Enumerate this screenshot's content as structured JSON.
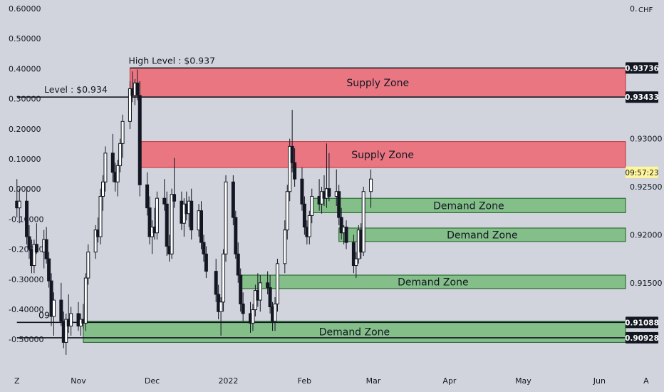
{
  "chart_data": {
    "type": "candlestick",
    "currency": "CHF",
    "current_time": "09:57:23",
    "left_axis_ticks": [
      "0.60000",
      "0.50000",
      "0.40000",
      "0.30000",
      "0.20000",
      "0.10000",
      "0.00000",
      "-0.10000",
      "-0.20000",
      "-0.30000",
      "-0.40000",
      "-0.50000"
    ],
    "right_axis_ticks": [
      {
        "label": "0.93000",
        "value": 0.93
      },
      {
        "label": "0.92500",
        "value": 0.925
      },
      {
        "label": "0.92000",
        "value": 0.92
      },
      {
        "label": "0.91500",
        "value": 0.915
      }
    ],
    "right_axis_top_label": "0.",
    "price_badges": [
      {
        "label": "0.93736",
        "value": 0.93736
      },
      {
        "label": "0.93433",
        "value": 0.93433
      },
      {
        "label": "0.91088",
        "value": 0.91088
      },
      {
        "label": "0.90928",
        "value": 0.90928
      }
    ],
    "x_labels": [
      {
        "label": "Z",
        "date": "2021-10-07"
      },
      {
        "label": "Nov",
        "date": "2021-11-01"
      },
      {
        "label": "Dec",
        "date": "2021-12-01"
      },
      {
        "label": "2022",
        "date": "2022-01-01"
      },
      {
        "label": "Feb",
        "date": "2022-02-01"
      },
      {
        "label": "Mar",
        "date": "2022-03-01"
      },
      {
        "label": "Apr",
        "date": "2022-04-01"
      },
      {
        "label": "May",
        "date": "2022-05-01"
      },
      {
        "label": "Jun",
        "date": "2022-06-01"
      },
      {
        "label": "A",
        "date": "2022-06-20"
      }
    ],
    "levels": [
      {
        "label": "High Level : $0.937",
        "value": 0.93736,
        "start": "2021-11-22",
        "end": "2022-06-20"
      },
      {
        "label": "Level : $0.934",
        "value": 0.93433,
        "start": "2021-10-07",
        "end": "2022-06-20"
      },
      {
        "label": "09",
        "value": 0.91088,
        "start": "2021-10-07",
        "end": "2022-06-20"
      },
      {
        "label": "",
        "value": 0.90928,
        "start": "2021-10-07",
        "end": "2022-06-20"
      }
    ],
    "zones": [
      {
        "label": "Supply Zone",
        "kind": "supply",
        "from": "2021-11-22",
        "to": "2022-06-20",
        "low": 0.93433,
        "high": 0.93736
      },
      {
        "label": "Supply Zone",
        "kind": "supply",
        "from": "2021-11-26",
        "to": "2022-06-20",
        "low": 0.927,
        "high": 0.9297
      },
      {
        "label": "Demand Zone",
        "kind": "demand",
        "from": "2022-02-04",
        "to": "2022-06-20",
        "low": 0.9223,
        "high": 0.9238
      },
      {
        "label": "Demand Zone",
        "kind": "demand",
        "from": "2022-02-15",
        "to": "2022-06-16",
        "low": 0.9193,
        "high": 0.9207
      },
      {
        "label": "Demand Zone",
        "kind": "demand",
        "from": "2022-01-06",
        "to": "2022-06-14",
        "low": 0.9144,
        "high": 0.9158
      },
      {
        "label": "Demand Zone",
        "kind": "demand",
        "from": "2021-11-03",
        "to": "2022-06-14",
        "low": 0.9088,
        "high": 0.911
      }
    ],
    "candles": [
      {
        "d": "2021-10-07",
        "o": 0.9235,
        "h": 0.9258,
        "l": 0.9218,
        "c": 0.9228
      },
      {
        "d": "2021-10-08",
        "o": 0.9228,
        "h": 0.9248,
        "l": 0.9212,
        "c": 0.9235
      },
      {
        "d": "2021-10-11",
        "o": 0.9235,
        "h": 0.925,
        "l": 0.919,
        "c": 0.9198
      },
      {
        "d": "2021-10-12",
        "o": 0.9198,
        "h": 0.921,
        "l": 0.9175,
        "c": 0.9185
      },
      {
        "d": "2021-10-13",
        "o": 0.9185,
        "h": 0.9195,
        "l": 0.916,
        "c": 0.9168
      },
      {
        "d": "2021-10-14",
        "o": 0.9168,
        "h": 0.9195,
        "l": 0.916,
        "c": 0.919
      },
      {
        "d": "2021-10-15",
        "o": 0.919,
        "h": 0.9212,
        "l": 0.918,
        "c": 0.9182
      },
      {
        "d": "2021-10-18",
        "o": 0.9182,
        "h": 0.9205,
        "l": 0.9165,
        "c": 0.9195
      },
      {
        "d": "2021-10-19",
        "o": 0.9195,
        "h": 0.9208,
        "l": 0.917,
        "c": 0.9175
      },
      {
        "d": "2021-10-20",
        "o": 0.9175,
        "h": 0.9182,
        "l": 0.9145,
        "c": 0.9152
      },
      {
        "d": "2021-10-21",
        "o": 0.9152,
        "h": 0.916,
        "l": 0.9105,
        "c": 0.9115
      },
      {
        "d": "2021-10-22",
        "o": 0.9115,
        "h": 0.914,
        "l": 0.9095,
        "c": 0.9132
      },
      {
        "d": "2021-10-25",
        "o": 0.9132,
        "h": 0.915,
        "l": 0.9105,
        "c": 0.911
      },
      {
        "d": "2021-10-26",
        "o": 0.911,
        "h": 0.912,
        "l": 0.9082,
        "c": 0.9088
      },
      {
        "d": "2021-10-27",
        "o": 0.9088,
        "h": 0.9118,
        "l": 0.9075,
        "c": 0.9112
      },
      {
        "d": "2021-10-28",
        "o": 0.9112,
        "h": 0.9138,
        "l": 0.9098,
        "c": 0.9105
      },
      {
        "d": "2021-10-29",
        "o": 0.9105,
        "h": 0.9125,
        "l": 0.9095,
        "c": 0.9118
      },
      {
        "d": "2021-11-01",
        "o": 0.9118,
        "h": 0.913,
        "l": 0.91,
        "c": 0.9105
      },
      {
        "d": "2021-11-02",
        "o": 0.9105,
        "h": 0.9118,
        "l": 0.9095,
        "c": 0.9112
      },
      {
        "d": "2021-11-03",
        "o": 0.9112,
        "h": 0.9128,
        "l": 0.9102,
        "c": 0.9108
      },
      {
        "d": "2021-11-04",
        "o": 0.9108,
        "h": 0.916,
        "l": 0.91,
        "c": 0.9155
      },
      {
        "d": "2021-11-05",
        "o": 0.9155,
        "h": 0.919,
        "l": 0.9148,
        "c": 0.9182
      },
      {
        "d": "2021-11-08",
        "o": 0.9182,
        "h": 0.921,
        "l": 0.9175,
        "c": 0.9205
      },
      {
        "d": "2021-11-09",
        "o": 0.9205,
        "h": 0.9218,
        "l": 0.9192,
        "c": 0.9198
      },
      {
        "d": "2021-11-10",
        "o": 0.9198,
        "h": 0.9248,
        "l": 0.919,
        "c": 0.924
      },
      {
        "d": "2021-11-11",
        "o": 0.924,
        "h": 0.9262,
        "l": 0.9225,
        "c": 0.9255
      },
      {
        "d": "2021-11-12",
        "o": 0.9255,
        "h": 0.9292,
        "l": 0.9245,
        "c": 0.9285
      },
      {
        "d": "2021-11-15",
        "o": 0.9285,
        "h": 0.9305,
        "l": 0.9255,
        "c": 0.9265
      },
      {
        "d": "2021-11-16",
        "o": 0.9265,
        "h": 0.9275,
        "l": 0.9245,
        "c": 0.9255
      },
      {
        "d": "2021-11-17",
        "o": 0.9255,
        "h": 0.9278,
        "l": 0.924,
        "c": 0.9272
      },
      {
        "d": "2021-11-18",
        "o": 0.9272,
        "h": 0.93,
        "l": 0.9265,
        "c": 0.9295
      },
      {
        "d": "2021-11-19",
        "o": 0.9295,
        "h": 0.9325,
        "l": 0.928,
        "c": 0.9318
      },
      {
        "d": "2021-11-22",
        "o": 0.9318,
        "h": 0.936,
        "l": 0.931,
        "c": 0.9352
      },
      {
        "d": "2021-11-23",
        "o": 0.9352,
        "h": 0.937,
        "l": 0.9338,
        "c": 0.9345
      },
      {
        "d": "2021-11-24",
        "o": 0.9345,
        "h": 0.9362,
        "l": 0.9335,
        "c": 0.9358
      },
      {
        "d": "2021-11-25",
        "o": 0.9358,
        "h": 0.9372,
        "l": 0.934,
        "c": 0.9345
      },
      {
        "d": "2021-11-26",
        "o": 0.9345,
        "h": 0.936,
        "l": 0.924,
        "c": 0.9252
      },
      {
        "d": "2021-11-29",
        "o": 0.9252,
        "h": 0.9265,
        "l": 0.922,
        "c": 0.9228
      },
      {
        "d": "2021-11-30",
        "o": 0.9228,
        "h": 0.924,
        "l": 0.919,
        "c": 0.9198
      },
      {
        "d": "2021-12-01",
        "o": 0.9198,
        "h": 0.9215,
        "l": 0.918,
        "c": 0.9208
      },
      {
        "d": "2021-12-02",
        "o": 0.9208,
        "h": 0.9228,
        "l": 0.9195,
        "c": 0.9202
      },
      {
        "d": "2021-12-03",
        "o": 0.9202,
        "h": 0.9245,
        "l": 0.9195,
        "c": 0.9238
      },
      {
        "d": "2021-12-06",
        "o": 0.9238,
        "h": 0.9258,
        "l": 0.9225,
        "c": 0.9232
      },
      {
        "d": "2021-12-07",
        "o": 0.9232,
        "h": 0.9245,
        "l": 0.9178,
        "c": 0.9188
      },
      {
        "d": "2021-12-08",
        "o": 0.9188,
        "h": 0.92,
        "l": 0.9172,
        "c": 0.918
      },
      {
        "d": "2021-12-09",
        "o": 0.918,
        "h": 0.9248,
        "l": 0.9175,
        "c": 0.9242
      },
      {
        "d": "2021-12-10",
        "o": 0.9242,
        "h": 0.928,
        "l": 0.9228,
        "c": 0.9235
      },
      {
        "d": "2021-12-13",
        "o": 0.9235,
        "h": 0.9245,
        "l": 0.9205,
        "c": 0.9212
      },
      {
        "d": "2021-12-14",
        "o": 0.9212,
        "h": 0.9238,
        "l": 0.9198,
        "c": 0.9232
      },
      {
        "d": "2021-12-15",
        "o": 0.9232,
        "h": 0.9245,
        "l": 0.9215,
        "c": 0.9222
      },
      {
        "d": "2021-12-16",
        "o": 0.9222,
        "h": 0.924,
        "l": 0.9208,
        "c": 0.9235
      },
      {
        "d": "2021-12-17",
        "o": 0.9235,
        "h": 0.9248,
        "l": 0.9195,
        "c": 0.9205
      },
      {
        "d": "2021-12-20",
        "o": 0.9205,
        "h": 0.9232,
        "l": 0.9198,
        "c": 0.9225
      },
      {
        "d": "2021-12-21",
        "o": 0.9225,
        "h": 0.9235,
        "l": 0.9185,
        "c": 0.9192
      },
      {
        "d": "2021-12-22",
        "o": 0.9192,
        "h": 0.92,
        "l": 0.9172,
        "c": 0.918
      },
      {
        "d": "2021-12-23",
        "o": 0.918,
        "h": 0.9188,
        "l": 0.9155,
        "c": 0.9162
      },
      {
        "d": "2021-12-27",
        "o": 0.9162,
        "h": 0.9175,
        "l": 0.913,
        "c": 0.9138
      },
      {
        "d": "2021-12-28",
        "o": 0.9138,
        "h": 0.9148,
        "l": 0.9112,
        "c": 0.912
      },
      {
        "d": "2021-12-29",
        "o": 0.912,
        "h": 0.9135,
        "l": 0.9095,
        "c": 0.913
      },
      {
        "d": "2021-12-30",
        "o": 0.913,
        "h": 0.9185,
        "l": 0.912,
        "c": 0.918
      },
      {
        "d": "2021-12-31",
        "o": 0.918,
        "h": 0.9262,
        "l": 0.9172,
        "c": 0.9255
      },
      {
        "d": "2022-01-03",
        "o": 0.9255,
        "h": 0.9262,
        "l": 0.921,
        "c": 0.9218
      },
      {
        "d": "2022-01-04",
        "o": 0.9218,
        "h": 0.9225,
        "l": 0.9175,
        "c": 0.918
      },
      {
        "d": "2022-01-05",
        "o": 0.918,
        "h": 0.9192,
        "l": 0.915,
        "c": 0.9158
      },
      {
        "d": "2022-01-06",
        "o": 0.9158,
        "h": 0.9165,
        "l": 0.912,
        "c": 0.9128
      },
      {
        "d": "2022-01-07",
        "o": 0.9128,
        "h": 0.914,
        "l": 0.911,
        "c": 0.9118
      },
      {
        "d": "2022-01-10",
        "o": 0.9118,
        "h": 0.913,
        "l": 0.9098,
        "c": 0.9108
      },
      {
        "d": "2022-01-11",
        "o": 0.9108,
        "h": 0.9128,
        "l": 0.91,
        "c": 0.9122
      },
      {
        "d": "2022-01-12",
        "o": 0.9122,
        "h": 0.9148,
        "l": 0.9115,
        "c": 0.9142
      },
      {
        "d": "2022-01-13",
        "o": 0.9142,
        "h": 0.916,
        "l": 0.9125,
        "c": 0.9132
      },
      {
        "d": "2022-01-14",
        "o": 0.9132,
        "h": 0.9158,
        "l": 0.912,
        "c": 0.915
      },
      {
        "d": "2022-01-17",
        "o": 0.915,
        "h": 0.9162,
        "l": 0.9138,
        "c": 0.9145
      },
      {
        "d": "2022-01-18",
        "o": 0.9145,
        "h": 0.9158,
        "l": 0.9118,
        "c": 0.9125
      },
      {
        "d": "2022-01-19",
        "o": 0.9125,
        "h": 0.913,
        "l": 0.91,
        "c": 0.911
      },
      {
        "d": "2022-01-20",
        "o": 0.911,
        "h": 0.9135,
        "l": 0.91,
        "c": 0.9128
      },
      {
        "d": "2022-01-21",
        "o": 0.9128,
        "h": 0.9175,
        "l": 0.912,
        "c": 0.917
      },
      {
        "d": "2022-01-24",
        "o": 0.917,
        "h": 0.9215,
        "l": 0.916,
        "c": 0.9205
      },
      {
        "d": "2022-01-25",
        "o": 0.9205,
        "h": 0.9252,
        "l": 0.9195,
        "c": 0.9245
      },
      {
        "d": "2022-01-26",
        "o": 0.9245,
        "h": 0.93,
        "l": 0.9235,
        "c": 0.9292
      },
      {
        "d": "2022-01-27",
        "o": 0.9292,
        "h": 0.933,
        "l": 0.9265,
        "c": 0.9275
      },
      {
        "d": "2022-01-28",
        "o": 0.9275,
        "h": 0.929,
        "l": 0.925,
        "c": 0.9258
      },
      {
        "d": "2022-01-31",
        "o": 0.9258,
        "h": 0.927,
        "l": 0.9225,
        "c": 0.9232
      },
      {
        "d": "2022-02-01",
        "o": 0.9232,
        "h": 0.924,
        "l": 0.92,
        "c": 0.9208
      },
      {
        "d": "2022-02-02",
        "o": 0.9208,
        "h": 0.9215,
        "l": 0.919,
        "c": 0.9198
      },
      {
        "d": "2022-02-03",
        "o": 0.9198,
        "h": 0.9225,
        "l": 0.919,
        "c": 0.922
      },
      {
        "d": "2022-02-04",
        "o": 0.922,
        "h": 0.9248,
        "l": 0.9212,
        "c": 0.924
      },
      {
        "d": "2022-02-07",
        "o": 0.924,
        "h": 0.9258,
        "l": 0.9225,
        "c": 0.9232
      },
      {
        "d": "2022-02-08",
        "o": 0.9232,
        "h": 0.925,
        "l": 0.9222,
        "c": 0.9245
      },
      {
        "d": "2022-02-09",
        "o": 0.9245,
        "h": 0.9262,
        "l": 0.923,
        "c": 0.9238
      },
      {
        "d": "2022-02-10",
        "o": 0.9238,
        "h": 0.9295,
        "l": 0.9228,
        "c": 0.9248
      },
      {
        "d": "2022-02-11",
        "o": 0.9248,
        "h": 0.9285,
        "l": 0.9235,
        "c": 0.924
      },
      {
        "d": "2022-02-14",
        "o": 0.924,
        "h": 0.9268,
        "l": 0.923,
        "c": 0.9245
      },
      {
        "d": "2022-02-15",
        "o": 0.9245,
        "h": 0.9252,
        "l": 0.921,
        "c": 0.9218
      },
      {
        "d": "2022-02-16",
        "o": 0.9218,
        "h": 0.9228,
        "l": 0.9195,
        "c": 0.9202
      },
      {
        "d": "2022-02-17",
        "o": 0.9202,
        "h": 0.921,
        "l": 0.919,
        "c": 0.9208
      },
      {
        "d": "2022-02-18",
        "o": 0.9208,
        "h": 0.9215,
        "l": 0.9185,
        "c": 0.9192
      },
      {
        "d": "2022-02-21",
        "o": 0.9192,
        "h": 0.92,
        "l": 0.916,
        "c": 0.9168
      },
      {
        "d": "2022-02-22",
        "o": 0.9168,
        "h": 0.9182,
        "l": 0.9155,
        "c": 0.9175
      },
      {
        "d": "2022-02-23",
        "o": 0.9175,
        "h": 0.921,
        "l": 0.917,
        "c": 0.9205
      },
      {
        "d": "2022-02-24",
        "o": 0.9205,
        "h": 0.9212,
        "l": 0.9175,
        "c": 0.9182
      },
      {
        "d": "2022-02-25",
        "o": 0.9182,
        "h": 0.925,
        "l": 0.9178,
        "c": 0.9245
      },
      {
        "d": "2022-02-28",
        "o": 0.9245,
        "h": 0.9268,
        "l": 0.9228,
        "c": 0.9258
      }
    ]
  }
}
